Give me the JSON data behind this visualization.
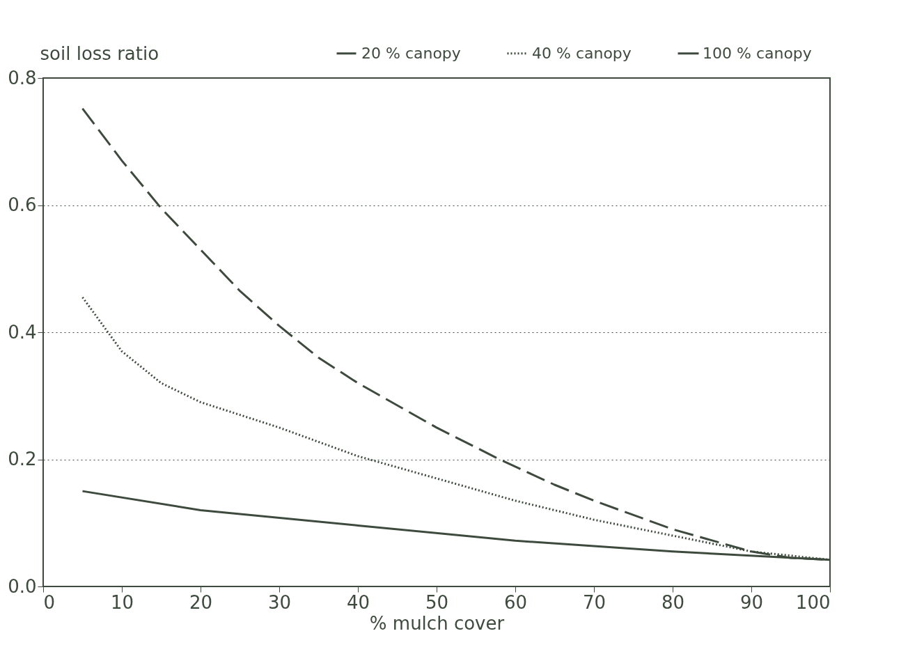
{
  "chart_data": {
    "type": "line",
    "ylabel": "soil loss ratio",
    "xlabel": "% mulch cover",
    "series": [
      {
        "name": "20 % canopy",
        "color": "#3d4a3d",
        "line_style": "dashed",
        "x": [
          5,
          10,
          15,
          20,
          25,
          30,
          35,
          40,
          50,
          58,
          65,
          70,
          80,
          90,
          95,
          100
        ],
        "values": [
          0.752,
          0.67,
          0.595,
          0.53,
          0.465,
          0.41,
          0.36,
          0.32,
          0.25,
          0.2,
          0.16,
          0.135,
          0.09,
          0.055,
          0.045,
          0.042
        ]
      },
      {
        "name": "40 % canopy",
        "color": "#3d4a3d",
        "line_style": "dotted",
        "x": [
          5,
          10,
          15,
          20,
          25,
          30,
          40,
          50,
          60,
          70,
          80,
          90,
          100
        ],
        "values": [
          0.455,
          0.37,
          0.32,
          0.29,
          0.27,
          0.25,
          0.205,
          0.17,
          0.135,
          0.105,
          0.08,
          0.055,
          0.042
        ]
      },
      {
        "name": "100 % canopy",
        "color": "#3d4a3d",
        "line_style": "solid",
        "x": [
          5,
          20,
          40,
          60,
          80,
          100
        ],
        "values": [
          0.15,
          0.12,
          0.096,
          0.072,
          0.055,
          0.042
        ]
      }
    ],
    "xlim": [
      0,
      100
    ],
    "xticks": [
      0,
      10,
      20,
      30,
      40,
      50,
      60,
      70,
      80,
      90,
      100
    ],
    "ylim": [
      0,
      0.8
    ],
    "yticks": [
      {
        "value": 0,
        "label": "0.0"
      },
      {
        "value": 0.2,
        "label": "0.2"
      },
      {
        "value": 0.4,
        "label": "0.4"
      },
      {
        "value": 0.6,
        "label": "0.6"
      },
      {
        "value": 0.8,
        "label": "0.8"
      }
    ],
    "grid": "y",
    "legend": "top",
    "marker": "none"
  }
}
